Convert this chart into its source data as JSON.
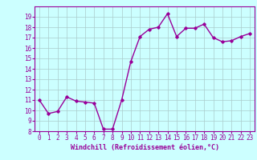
{
  "x": [
    0,
    1,
    2,
    3,
    4,
    5,
    6,
    7,
    8,
    9,
    10,
    11,
    12,
    13,
    14,
    15,
    16,
    17,
    18,
    19,
    20,
    21,
    22,
    23
  ],
  "y": [
    11.0,
    9.7,
    9.9,
    11.3,
    10.9,
    10.8,
    10.7,
    8.2,
    8.2,
    11.0,
    14.7,
    17.1,
    17.8,
    18.0,
    19.3,
    17.1,
    17.9,
    17.9,
    18.3,
    17.0,
    16.6,
    16.7,
    17.1,
    17.4
  ],
  "line_color": "#990099",
  "marker": "D",
  "marker_size": 1.8,
  "background_color": "#ccffff",
  "grid_color": "#aacccc",
  "xlabel": "Windchill (Refroidissement éolien,°C)",
  "xlabel_color": "#990099",
  "tick_color": "#990099",
  "ylim": [
    8,
    20
  ],
  "xlim": [
    -0.5,
    23.5
  ],
  "yticks": [
    8,
    9,
    10,
    11,
    12,
    13,
    14,
    15,
    16,
    17,
    18,
    19
  ],
  "xticks": [
    0,
    1,
    2,
    3,
    4,
    5,
    6,
    7,
    8,
    9,
    10,
    11,
    12,
    13,
    14,
    15,
    16,
    17,
    18,
    19,
    20,
    21,
    22,
    23
  ],
  "linewidth": 1.0,
  "tick_fontsize": 5.5,
  "xlabel_fontsize": 6.0
}
